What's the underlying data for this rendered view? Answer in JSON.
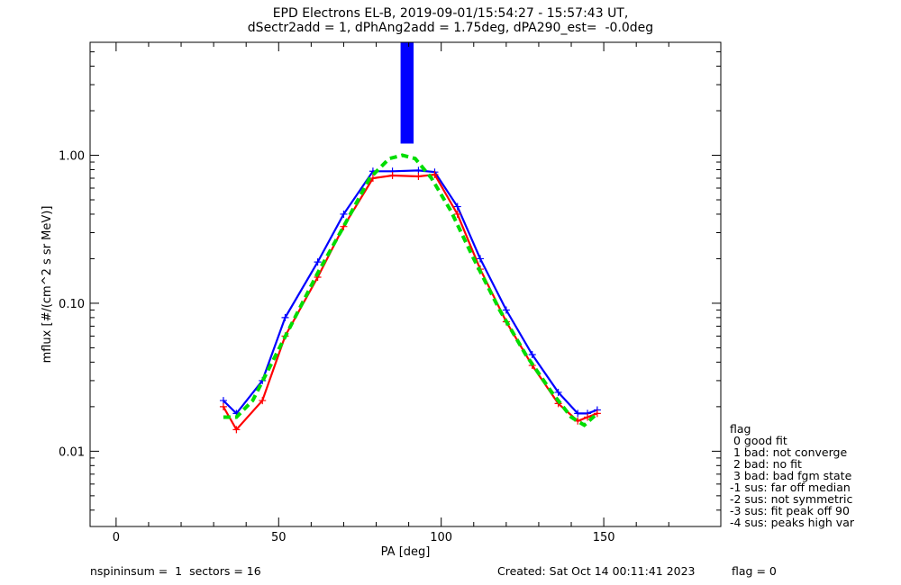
{
  "header": {
    "title_line1": "EPD Electrons EL-B, 2019-09-01/15:54:27 - 15:57:43 UT,",
    "title_line2": "dSectr2add = 1, dPhAng2add = 1.75deg, dPA290_est=  -0.0deg"
  },
  "footer": {
    "left": "nspininsum =  1  sectors = 16",
    "created": "Created: Sat Oct 14 00:11:41 2023",
    "flag": "flag = 0"
  },
  "legend": {
    "title": "flag",
    "entries": [
      " 0 good fit",
      " 1 bad: not converge",
      " 2 bad: no fit",
      " 3 bad: bad fgm state",
      "-1 sus: far off median",
      "-2 sus: not symmetric",
      "-3 sus: fit peak off 90",
      "-4 sus: peaks high var"
    ]
  },
  "chart_data": {
    "type": "line",
    "xlabel": "PA [deg]",
    "ylabel": "mflux [#/(cm^2 s sr MeV)]",
    "xlim": [
      -8,
      186
    ],
    "ylim": [
      0.0031,
      5.8
    ],
    "yscale": "log",
    "xticks": [
      0,
      50,
      100,
      150
    ],
    "xtick_labels": [
      "0",
      "50",
      "100",
      "150"
    ],
    "yticks": [
      0.01,
      0.1,
      1.0
    ],
    "ytick_labels": [
      "0.01",
      "0.10",
      "1.00"
    ],
    "series": [
      {
        "color": "#0000ff",
        "style": "solid",
        "x": [
          33,
          37,
          45,
          52,
          62,
          70,
          79,
          85,
          93,
          98,
          105,
          112,
          120,
          128,
          136,
          142,
          145,
          148
        ],
        "y": [
          0.022,
          0.018,
          0.03,
          0.08,
          0.19,
          0.4,
          0.78,
          0.78,
          0.79,
          0.77,
          0.45,
          0.2,
          0.09,
          0.045,
          0.025,
          0.018,
          0.018,
          0.019
        ]
      },
      {
        "color": "#ff0000",
        "style": "solid",
        "x": [
          33,
          37,
          45,
          52,
          62,
          70,
          79,
          85,
          93,
          98,
          105,
          112,
          120,
          128,
          136,
          142,
          145,
          148
        ],
        "y": [
          0.02,
          0.014,
          0.022,
          0.06,
          0.15,
          0.33,
          0.7,
          0.73,
          0.72,
          0.74,
          0.4,
          0.17,
          0.075,
          0.038,
          0.021,
          0.016,
          0.017,
          0.018
        ]
      },
      {
        "color": "#00dd00",
        "style": "dashed",
        "x": [
          33,
          37,
          42,
          48,
          55,
          62,
          70,
          78,
          84,
          88,
          92,
          97,
          103,
          110,
          118,
          126,
          134,
          140,
          144,
          148
        ],
        "y": [
          0.017,
          0.017,
          0.022,
          0.04,
          0.08,
          0.16,
          0.33,
          0.7,
          0.95,
          1.0,
          0.95,
          0.7,
          0.42,
          0.2,
          0.09,
          0.045,
          0.025,
          0.017,
          0.015,
          0.018
        ]
      }
    ],
    "vertical_band": {
      "color": "#0000ff",
      "x_range": [
        87.5,
        91.5
      ],
      "y_from": 1.2
    }
  }
}
